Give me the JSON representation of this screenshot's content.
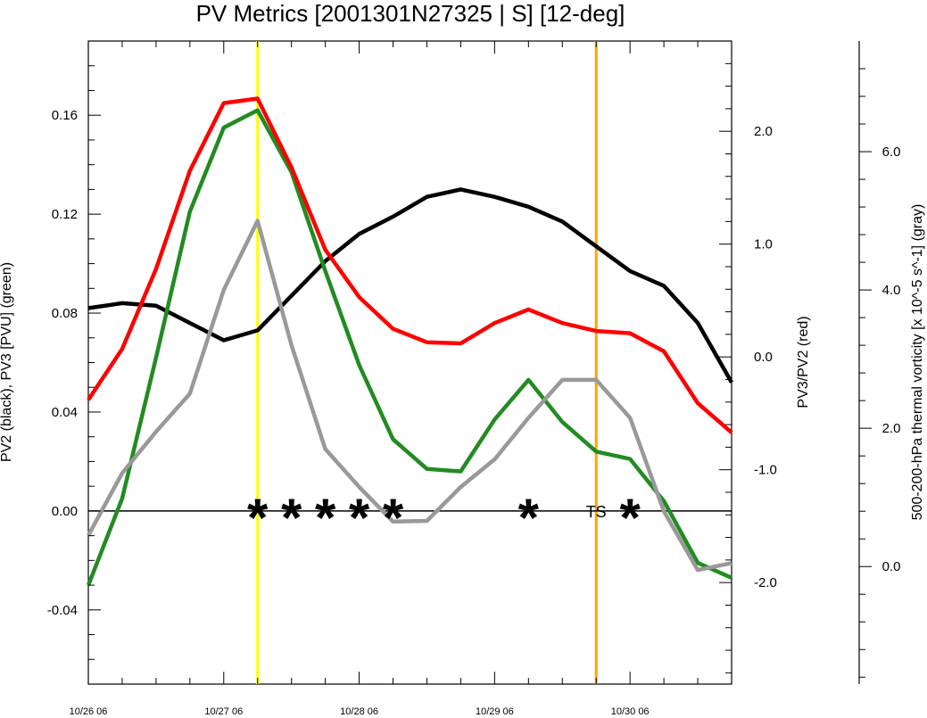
{
  "chart_data": {
    "type": "line",
    "title": "PV Metrics [2001301N27325 | S] [12-deg]",
    "x": {
      "min": 0,
      "max": 4.75,
      "tick_labels": [
        "10/26 06",
        "10/27 06",
        "10/28 06",
        "10/29 06",
        "10/30 06"
      ],
      "tick_values": [
        0,
        1,
        2,
        3,
        4
      ]
    },
    "y_left": {
      "label": "PV2 (black), PV3 [PVU] (green)",
      "min": -0.07,
      "max": 0.19,
      "tick_values": [
        -0.04,
        0.0,
        0.04,
        0.08,
        0.12,
        0.16
      ],
      "tick_labels": [
        "-0.04",
        "0.00",
        "0.04",
        "0.08",
        "0.12",
        "0.16"
      ]
    },
    "y_right": {
      "label": "PV3/PV2 (red)",
      "min": -2.9,
      "max": 2.8,
      "tick_values": [
        -2.0,
        -1.0,
        0.0,
        1.0,
        2.0
      ],
      "tick_labels": [
        "-2.0",
        "-1.0",
        "0.0",
        "1.0",
        "2.0"
      ]
    },
    "y_far": {
      "label": "500-200-hPa thermal vorticity [x 10^-5 s^-1] (gray)",
      "min": -1.7,
      "max": 7.6,
      "tick_values": [
        0.0,
        2.0,
        4.0,
        6.0
      ],
      "tick_labels": [
        "0.0",
        "2.0",
        "4.0",
        "6.0"
      ]
    },
    "x_values": [
      0,
      0.25,
      0.5,
      0.75,
      1.0,
      1.25,
      1.5,
      1.75,
      2.0,
      2.25,
      2.5,
      2.75,
      3.0,
      3.25,
      3.5,
      3.75,
      4.0,
      4.25,
      4.5,
      4.75
    ],
    "series": [
      {
        "color": "#000000",
        "axis": "left",
        "values": [
          0.082,
          0.084,
          0.083,
          0.076,
          0.069,
          0.073,
          0.087,
          0.101,
          0.112,
          0.119,
          0.127,
          0.13,
          0.127,
          0.123,
          0.117,
          0.107,
          0.097,
          0.091,
          0.076,
          0.052
        ]
      },
      {
        "color": "#228B22",
        "axis": "left",
        "values": [
          -0.03,
          0.005,
          0.062,
          0.121,
          0.155,
          0.162,
          0.137,
          0.097,
          0.059,
          0.029,
          0.017,
          0.016,
          0.037,
          0.053,
          0.036,
          0.024,
          0.021,
          0.004,
          -0.021,
          -0.027
        ]
      },
      {
        "color": "#ff0000",
        "axis": "right",
        "values": [
          -0.38,
          0.07,
          0.78,
          1.65,
          2.25,
          2.29,
          1.68,
          0.95,
          0.53,
          0.25,
          0.13,
          0.12,
          0.3,
          0.42,
          0.3,
          0.23,
          0.21,
          0.05,
          -0.41,
          -0.67
        ]
      },
      {
        "color": "#999999",
        "axis": "far",
        "values": [
          0.45,
          1.35,
          1.95,
          2.5,
          4.0,
          5.0,
          3.2,
          1.7,
          1.15,
          0.65,
          0.66,
          1.15,
          1.55,
          2.15,
          2.7,
          2.7,
          2.15,
          0.8,
          -0.05,
          0.05
        ]
      }
    ],
    "annotations": {
      "markers": [
        {
          "x": 1.25,
          "symbol": "*"
        },
        {
          "x": 1.5,
          "symbol": "*"
        },
        {
          "x": 1.75,
          "symbol": "*"
        },
        {
          "x": 2.0,
          "symbol": "*"
        },
        {
          "x": 2.25,
          "symbol": "*"
        },
        {
          "x": 3.25,
          "symbol": "*"
        },
        {
          "x": 4.0,
          "symbol": "*"
        }
      ],
      "stage_label": {
        "x": 3.75,
        "text": "TS"
      },
      "vertical_lines": [
        {
          "x": 1.25,
          "color": "#ffff00"
        },
        {
          "x": 3.75,
          "color": "#ffa500"
        }
      ],
      "zero_line": 0.0
    },
    "grid": false
  }
}
